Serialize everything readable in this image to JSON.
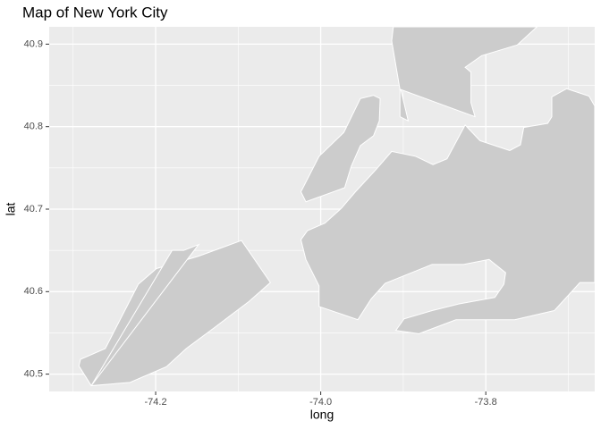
{
  "chart_data": {
    "type": "map",
    "title": "Map of New York City",
    "x_label": "long",
    "y_label": "lat",
    "fill": "#cccccc",
    "stroke": "#ffffff",
    "background": "#ebebeb",
    "grid": true,
    "xlim": [
      -74.329,
      -73.668
    ],
    "ylim": [
      40.479,
      40.921
    ],
    "xticks": [
      -74.2,
      {
        "value": -74.0,
        "label": "-74.0"
      },
      -73.8
    ],
    "yticks": [
      40.5,
      40.6,
      40.7,
      40.8,
      40.9
    ],
    "xminor": [
      -74.3,
      -74.1,
      -73.9,
      -73.7
    ],
    "yminor": [
      40.55,
      40.65,
      40.75,
      40.85
    ],
    "polygons": [
      {
        "x": [
          -74.291,
          -74.293,
          -74.278,
          -74.231,
          -74.187,
          -74.163,
          -74.128,
          -74.087,
          -74.061,
          -74.096,
          -74.148,
          -74.199,
          -74.221,
          -74.261
        ],
        "y": [
          40.518,
          40.51,
          40.486,
          40.49,
          40.509,
          40.531,
          40.557,
          40.588,
          40.611,
          40.662,
          40.643,
          40.628,
          40.609,
          40.531
        ]
      },
      {
        "x": [
          -74.278,
          -74.18,
          -74.166,
          -74.148
        ],
        "y": [
          40.486,
          40.65,
          40.65,
          40.657
        ]
      },
      {
        "x": [
          -74.024,
          -74.018,
          -73.971,
          -73.963,
          -73.952,
          -73.936,
          -73.929,
          -73.928,
          -73.936,
          -73.952,
          -73.972,
          -74.002
        ],
        "y": [
          40.721,
          40.709,
          40.726,
          40.752,
          40.777,
          40.789,
          40.807,
          40.834,
          40.838,
          40.834,
          40.793,
          40.764
        ]
      },
      {
        "x": [
          -73.912,
          -73.914,
          -73.904,
          -73.904,
          -73.894,
          -73.903,
          -73.813,
          -73.818,
          -73.818,
          -73.825,
          -73.805,
          -73.762,
          -73.738
        ],
        "y": [
          40.921,
          40.904,
          40.845,
          40.812,
          40.807,
          40.845,
          40.812,
          40.829,
          40.866,
          40.872,
          40.886,
          40.899,
          40.921
        ]
      },
      {
        "x": [
          -74.024,
          -74.018,
          -74.002,
          -74.002,
          -73.955,
          -73.939,
          -73.922,
          -73.865,
          -73.827,
          -73.796,
          -73.776,
          -73.778,
          -73.789,
          -73.833,
          -73.865,
          -73.899,
          -73.909,
          -73.881,
          -73.836,
          -73.765,
          -73.717,
          -73.686,
          -73.668,
          -73.668,
          -73.675,
          -73.702,
          -73.72,
          -73.72,
          -73.725,
          -73.754,
          -73.758,
          -73.771,
          -73.807,
          -73.825,
          -73.847,
          -73.864,
          -73.885,
          -73.914,
          -73.933,
          -73.958,
          -73.975,
          -73.995,
          -74.016
        ],
        "y": [
          40.663,
          40.639,
          40.607,
          40.582,
          40.566,
          40.591,
          40.61,
          40.633,
          40.633,
          40.639,
          40.623,
          40.609,
          40.593,
          40.585,
          40.577,
          40.567,
          40.553,
          40.549,
          40.566,
          40.566,
          40.577,
          40.611,
          40.611,
          40.825,
          40.837,
          40.846,
          40.836,
          40.812,
          40.804,
          40.799,
          40.778,
          40.771,
          40.783,
          40.802,
          40.761,
          40.754,
          40.764,
          40.77,
          40.748,
          40.721,
          40.701,
          40.683,
          40.674
        ]
      }
    ]
  }
}
